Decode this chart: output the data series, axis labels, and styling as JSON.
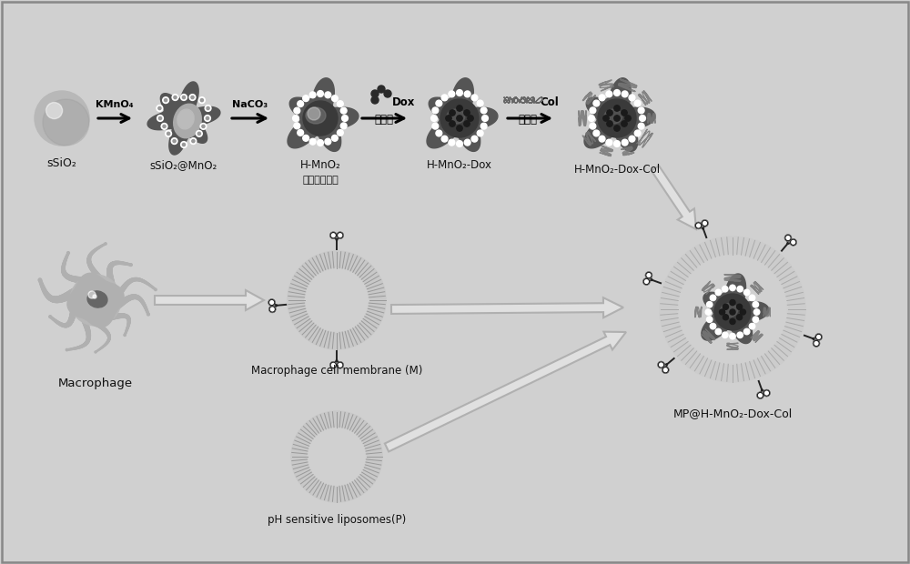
{
  "bg_color": "#d0d0d0",
  "labels": {
    "ssio2": "sSiO₂",
    "ssio2mno2": "sSiO₂@MnO₂",
    "hmno2_line1": "H-MnO₂",
    "hmno2_line2": "介孔二氧化锡",
    "hmno2dox": "H-MnO₂-Dox",
    "hmno2doxcol": "H-MnO₂-Dox-Col",
    "macrophage": "Macrophage",
    "macrophage_membrane": "Macrophage cell membrane (M)",
    "ph_liposome": "pH sensitive liposomes(P)",
    "final": "MP@H-MnO₂-Dox-Col"
  },
  "arrow_labels": {
    "kmno4": "KMnO₄",
    "naco3": "NaCO₃",
    "dox_en": "Dox",
    "dox_cn": "阿霊素",
    "col_en": "Col",
    "col_cn": "胶原鄙"
  },
  "colors": {
    "bg": "#d0d0d0",
    "bg2": "#c8c8c8",
    "dark": "#333333",
    "mid": "#777777",
    "light": "#aaaaaa",
    "lighter": "#cccccc",
    "white": "#ffffff",
    "black": "#111111",
    "sphere_gray": "#b0b0b0",
    "mno2_outer": "#666666",
    "mno2_inner": "#999999",
    "drug_dark": "#2a2a2a",
    "liposome_line": "#999999",
    "liposome_bg": "#d8d8d8",
    "macrophage_body": "#b8b8b8",
    "macrophage_nucleus": "#777777",
    "receptor_fill": "#ffffff",
    "receptor_stroke": "#222222",
    "hollow_arrow": "#cccccc",
    "hollow_arrow_edge": "#aaaaaa"
  }
}
